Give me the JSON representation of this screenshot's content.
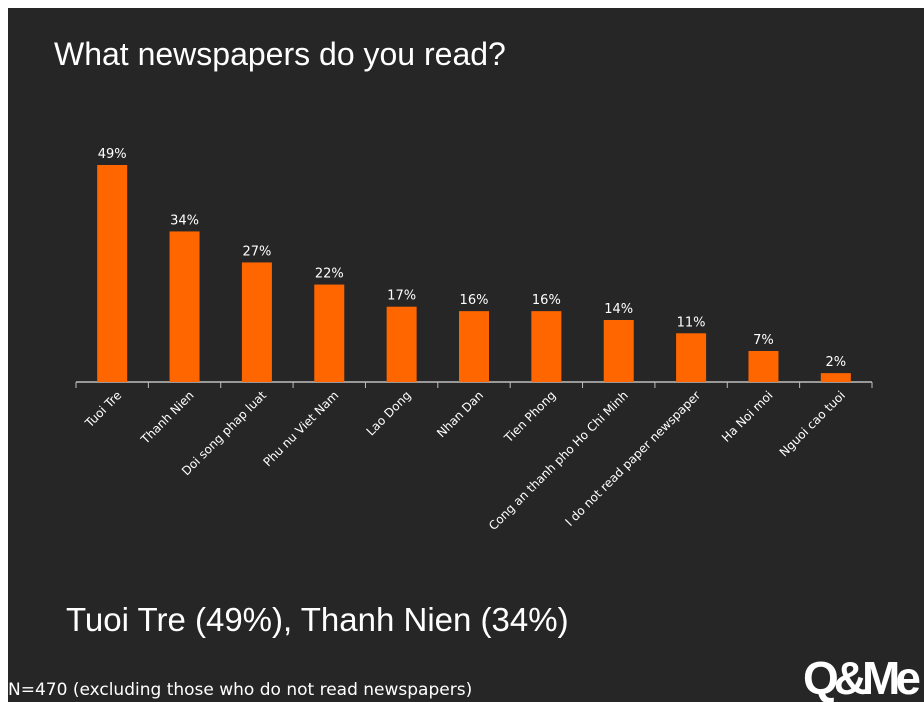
{
  "slide": {
    "title": "What newspapers do you read?",
    "summary": "Tuoi Tre (49%), Thanh Nien (34%)",
    "note": "N=470 (excluding those who do not read newspapers)",
    "logo_text": "Q&Me"
  },
  "colors": {
    "background": "#262626",
    "bar": "#ff6600",
    "text": "#ffffff",
    "axis": "#bfbfbf"
  },
  "chart_data": {
    "type": "bar",
    "title": "",
    "xlabel": "",
    "ylabel": "",
    "ylim": [
      0,
      50
    ],
    "grid": false,
    "value_suffix": "%",
    "categories": [
      "Tuoi Tre",
      "Thanh Nien",
      "Doi song phap luat",
      "Phu nu Viet Nam",
      "Lao Dong",
      "Nhan Dan",
      "Tien Phong",
      "Cong an thanh pho Ho Chi Minh",
      "I do not read paper newspaper",
      "Ha Noi moi",
      "Nguoi cao tuoi"
    ],
    "values": [
      49,
      34,
      27,
      22,
      17,
      16,
      16,
      14,
      11,
      7,
      2
    ],
    "data_labels": [
      "49%",
      "34%",
      "27%",
      "22%",
      "17%",
      "16%",
      "16%",
      "14%",
      "11%",
      "7%",
      "2%"
    ]
  }
}
